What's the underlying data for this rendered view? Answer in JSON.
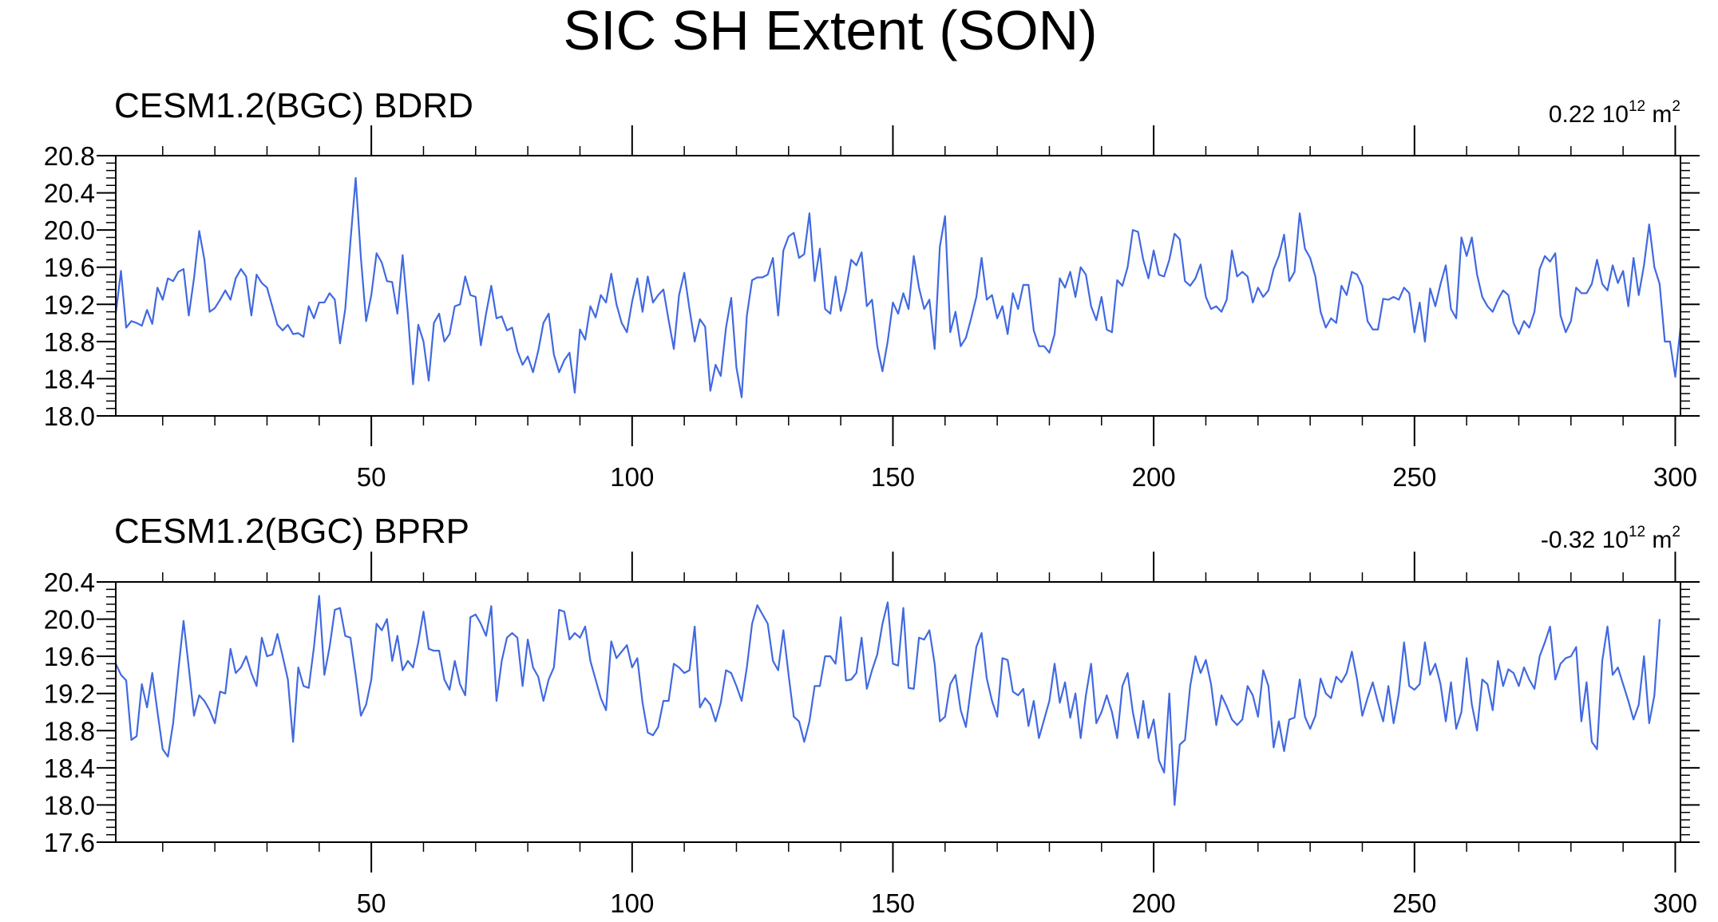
{
  "title": "SIC SH Extent (SON)",
  "colors": {
    "line": "#4169e1",
    "axis": "#000000",
    "background": "#ffffff"
  },
  "chart_data": [
    {
      "type": "line",
      "title": "CESM1.2(BGC) BDRD",
      "annotation": {
        "value": "0.22",
        "base": "10",
        "exp": "12",
        "unit": "m",
        "unit_exp": "2"
      },
      "xlim": [
        1,
        301
      ],
      "ylim": [
        18.0,
        20.8
      ],
      "x_ticks": [
        50,
        100,
        150,
        200,
        250,
        300
      ],
      "y_ticks": [
        18.0,
        18.4,
        18.8,
        19.2,
        19.6,
        20.0,
        20.4,
        20.8
      ],
      "x_tick_labels": [
        "50",
        "100",
        "150",
        "200",
        "250",
        "300"
      ],
      "y_tick_labels": [
        "18.0",
        "18.4",
        "18.8",
        "19.2",
        "19.6",
        "20.0",
        "20.4",
        "20.8"
      ],
      "grid": false,
      "series": [
        {
          "values": [
            19.1,
            19.56,
            18.95,
            19.02,
            19.0,
            18.97,
            19.14,
            18.99,
            19.38,
            19.25,
            19.48,
            19.45,
            19.55,
            19.58,
            19.08,
            19.48,
            19.99,
            19.68,
            19.12,
            19.16,
            19.25,
            19.35,
            19.25,
            19.48,
            19.58,
            19.5,
            19.08,
            19.52,
            19.43,
            19.38,
            19.18,
            18.98,
            18.92,
            18.98,
            18.88,
            18.89,
            18.85,
            19.18,
            19.05,
            19.22,
            19.22,
            19.32,
            19.25,
            18.78,
            19.15,
            19.88,
            20.56,
            19.7,
            19.02,
            19.3,
            19.75,
            19.65,
            19.45,
            19.44,
            19.1,
            19.73,
            19.1,
            18.34,
            18.98,
            18.8,
            18.38,
            19.0,
            19.1,
            18.8,
            18.88,
            19.18,
            19.2,
            19.5,
            19.3,
            19.28,
            18.76,
            19.1,
            19.4,
            19.05,
            19.07,
            18.92,
            18.95,
            18.7,
            18.55,
            18.64,
            18.47,
            18.7,
            19.0,
            19.1,
            18.66,
            18.47,
            18.6,
            18.68,
            18.25,
            18.93,
            18.82,
            19.18,
            19.06,
            19.3,
            19.22,
            19.53,
            19.2,
            19.0,
            18.9,
            19.23,
            19.48,
            19.12,
            19.5,
            19.22,
            19.3,
            19.36,
            19.03,
            18.72,
            19.3,
            19.54,
            19.15,
            18.8,
            19.04,
            18.96,
            18.27,
            18.55,
            18.43,
            18.95,
            19.27,
            18.52,
            18.2,
            19.08,
            19.46,
            19.49,
            19.49,
            19.52,
            19.7,
            19.08,
            19.78,
            19.93,
            19.97,
            19.7,
            19.74,
            20.18,
            19.45,
            19.8,
            19.15,
            19.1,
            19.5,
            19.13,
            19.35,
            19.68,
            19.62,
            19.76,
            19.18,
            19.25,
            18.75,
            18.48,
            18.8,
            19.22,
            19.1,
            19.32,
            19.15,
            19.72,
            19.38,
            19.15,
            19.25,
            18.72,
            19.82,
            20.15,
            18.9,
            19.12,
            18.75,
            18.84,
            19.05,
            19.28,
            19.7,
            19.25,
            19.3,
            19.05,
            19.18,
            18.88,
            19.32,
            19.15,
            19.41,
            19.41,
            18.92,
            18.75,
            18.75,
            18.68,
            18.88,
            19.48,
            19.38,
            19.55,
            19.28,
            19.6,
            19.52,
            19.18,
            19.03,
            19.28,
            18.93,
            18.9,
            19.46,
            19.4,
            19.6,
            20.0,
            19.98,
            19.68,
            19.48,
            19.78,
            19.52,
            19.5,
            19.68,
            19.96,
            19.9,
            19.45,
            19.4,
            19.48,
            19.63,
            19.28,
            19.15,
            19.18,
            19.12,
            19.25,
            19.78,
            19.5,
            19.55,
            19.5,
            19.22,
            19.38,
            19.28,
            19.35,
            19.58,
            19.72,
            19.95,
            19.45,
            19.55,
            20.18,
            19.8,
            19.7,
            19.5,
            19.12,
            18.95,
            19.05,
            19.0,
            19.4,
            19.3,
            19.55,
            19.52,
            19.4,
            19.02,
            18.93,
            18.93,
            19.26,
            19.25,
            19.28,
            19.25,
            19.38,
            19.32,
            18.9,
            19.22,
            18.8,
            19.37,
            19.18,
            19.42,
            19.62,
            19.15,
            19.05,
            19.92,
            19.72,
            19.92,
            19.52,
            19.28,
            19.18,
            19.12,
            19.25,
            19.35,
            19.3,
            19.0,
            18.88,
            19.02,
            18.95,
            19.12,
            19.58,
            19.72,
            19.66,
            19.75,
            19.08,
            18.9,
            19.02,
            19.38,
            19.32,
            19.32,
            19.42,
            19.68,
            19.42,
            19.35,
            19.62,
            19.43,
            19.56,
            19.18,
            19.7,
            19.3,
            19.62,
            20.06,
            19.6,
            19.42,
            18.8,
            18.8,
            18.42,
            18.95
          ]
        }
      ]
    },
    {
      "type": "line",
      "title": "CESM1.2(BGC) BPRP",
      "annotation": {
        "value": "-0.32",
        "base": "10",
        "exp": "12",
        "unit": "m",
        "unit_exp": "2"
      },
      "xlim": [
        1,
        301
      ],
      "ylim": [
        17.6,
        20.4
      ],
      "x_ticks": [
        50,
        100,
        150,
        200,
        250,
        300
      ],
      "y_ticks": [
        17.6,
        18.0,
        18.4,
        18.8,
        19.2,
        19.6,
        20.0,
        20.4
      ],
      "x_tick_labels": [
        "50",
        "100",
        "150",
        "200",
        "250",
        "300"
      ],
      "y_tick_labels": [
        "17.6",
        "18.0",
        "18.4",
        "18.8",
        "19.2",
        "19.6",
        "20.0",
        "20.4"
      ],
      "grid": false,
      "series": [
        {
          "values": [
            19.52,
            19.4,
            19.34,
            18.7,
            18.74,
            19.3,
            19.05,
            19.42,
            19.0,
            18.6,
            18.52,
            18.88,
            19.45,
            19.98,
            19.48,
            18.96,
            19.18,
            19.12,
            19.02,
            18.88,
            19.22,
            19.2,
            19.68,
            19.42,
            19.48,
            19.6,
            19.42,
            19.28,
            19.8,
            19.6,
            19.62,
            19.84,
            19.6,
            19.35,
            18.68,
            19.48,
            19.28,
            19.26,
            19.7,
            20.25,
            19.4,
            19.7,
            20.1,
            20.12,
            19.82,
            19.8,
            19.4,
            18.96,
            19.08,
            19.35,
            19.95,
            19.88,
            20.0,
            19.55,
            19.82,
            19.45,
            19.55,
            19.48,
            19.75,
            20.08,
            19.68,
            19.66,
            19.66,
            19.35,
            19.24,
            19.55,
            19.3,
            19.18,
            20.02,
            20.05,
            19.95,
            19.82,
            20.14,
            19.12,
            19.55,
            19.8,
            19.85,
            19.8,
            19.28,
            19.78,
            19.48,
            19.38,
            19.12,
            19.35,
            19.48,
            20.1,
            20.08,
            19.78,
            19.85,
            19.8,
            19.92,
            19.55,
            19.35,
            19.15,
            19.02,
            19.76,
            19.58,
            19.65,
            19.72,
            19.48,
            19.58,
            19.1,
            18.78,
            18.75,
            18.84,
            19.12,
            19.12,
            19.52,
            19.48,
            19.42,
            19.45,
            19.92,
            19.05,
            19.15,
            19.08,
            18.9,
            19.1,
            19.45,
            19.42,
            19.28,
            19.12,
            19.48,
            19.95,
            20.15,
            20.05,
            19.95,
            19.55,
            19.45,
            19.88,
            19.4,
            18.95,
            18.9,
            18.68,
            18.9,
            19.28,
            19.28,
            19.6,
            19.6,
            19.52,
            20.02,
            19.34,
            19.35,
            19.42,
            19.8,
            19.25,
            19.45,
            19.62,
            19.95,
            20.18,
            19.52,
            19.5,
            20.12,
            19.26,
            19.25,
            19.8,
            19.78,
            19.88,
            19.52,
            18.9,
            18.95,
            19.3,
            19.4,
            19.02,
            18.84,
            19.28,
            19.7,
            19.85,
            19.36,
            19.12,
            18.95,
            19.58,
            19.56,
            19.22,
            19.18,
            19.25,
            18.85,
            19.12,
            18.72,
            18.92,
            19.12,
            19.52,
            19.1,
            19.32,
            18.94,
            19.2,
            18.72,
            19.18,
            19.52,
            18.88,
            19.0,
            19.18,
            19.0,
            18.72,
            19.28,
            19.42,
            19.0,
            18.72,
            19.12,
            18.72,
            18.92,
            18.48,
            18.35,
            19.2,
            18.0,
            18.65,
            18.7,
            19.28,
            19.6,
            19.42,
            19.56,
            19.3,
            18.86,
            19.18,
            19.06,
            18.92,
            18.86,
            18.92,
            19.28,
            19.18,
            18.95,
            19.45,
            19.28,
            18.62,
            18.9,
            18.58,
            18.92,
            18.94,
            19.35,
            18.95,
            18.82,
            18.96,
            19.36,
            19.2,
            19.15,
            19.38,
            19.32,
            19.42,
            19.65,
            19.35,
            18.96,
            19.15,
            19.32,
            19.1,
            18.9,
            19.28,
            18.88,
            19.2,
            19.75,
            19.28,
            19.24,
            19.3,
            19.75,
            19.4,
            19.52,
            19.3,
            18.9,
            19.32,
            18.82,
            19.0,
            19.58,
            19.08,
            18.8,
            19.35,
            19.3,
            19.02,
            19.55,
            19.28,
            19.46,
            19.42,
            19.28,
            19.48,
            19.35,
            19.25,
            19.6,
            19.75,
            19.92,
            19.35,
            19.52,
            19.58,
            19.6,
            19.7,
            18.9,
            19.32,
            18.68,
            18.6,
            19.55,
            19.92,
            19.4,
            19.48,
            19.3,
            19.12,
            18.92,
            19.08,
            19.6,
            18.88,
            19.18,
            20.0
          ]
        }
      ]
    }
  ]
}
